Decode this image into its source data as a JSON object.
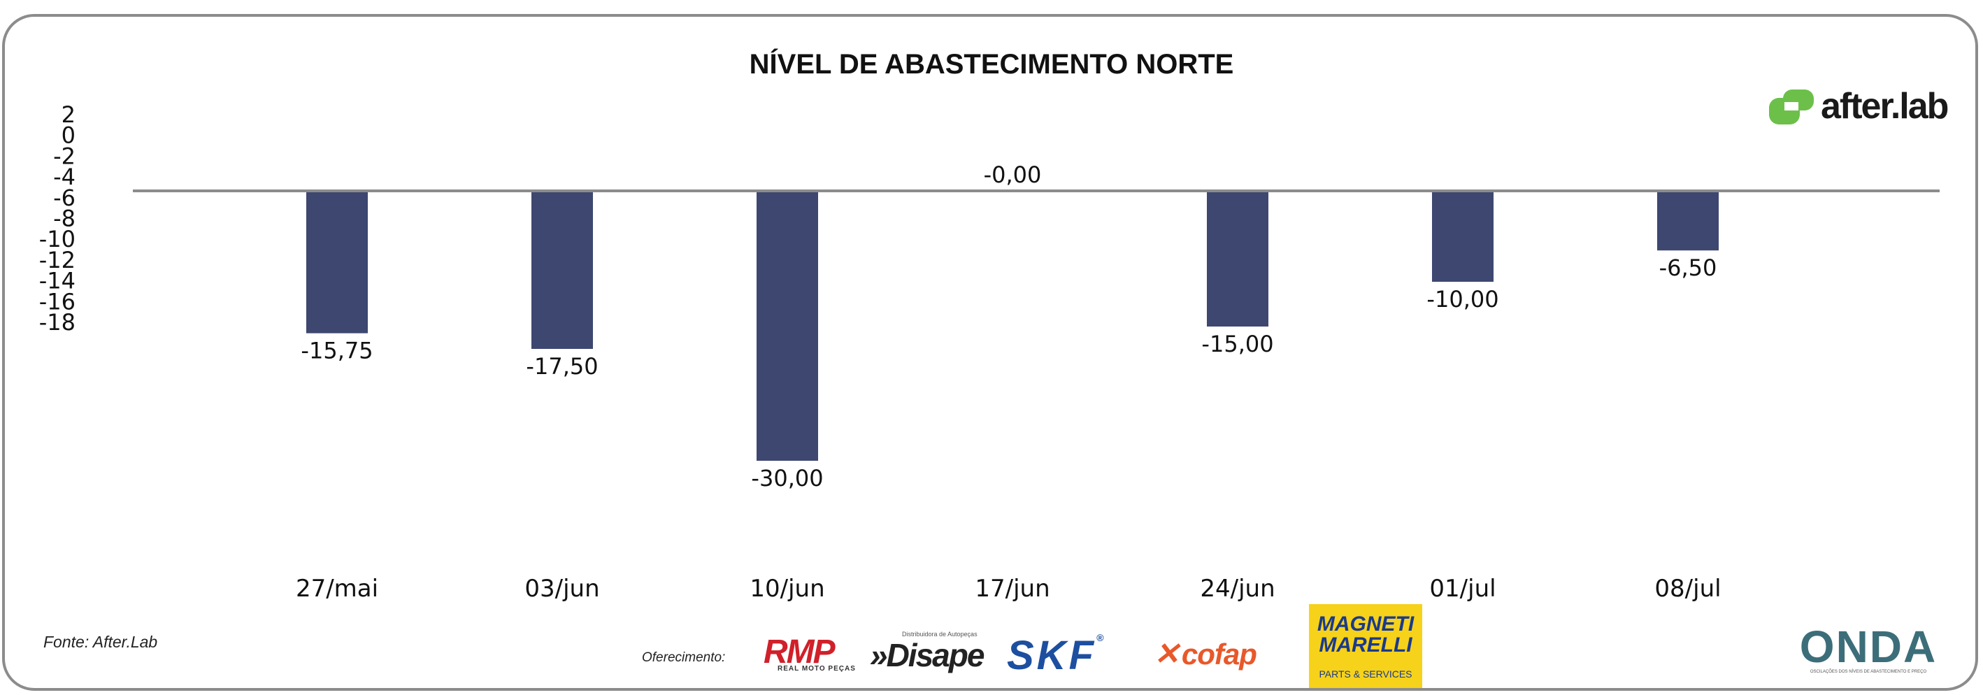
{
  "chart_data": {
    "type": "bar",
    "title": "NÍVEL DE ABASTECIMENTO NORTE",
    "categories": [
      "27/mai",
      "03/jun",
      "10/jun",
      "17/jun",
      "24/jun",
      "01/jul",
      "08/jul"
    ],
    "values": [
      -15.75,
      -17.5,
      -30.0,
      -0.0,
      -15.0,
      -10.0,
      -6.5
    ],
    "value_labels": [
      "-15,75",
      "-17,50",
      "-30,00",
      "-0,00",
      "-15,00",
      "-10,00",
      "-6,50"
    ],
    "yticks": [
      "2",
      "0",
      "-2",
      "-4",
      "-6",
      "-8",
      "-10",
      "-12",
      "-14",
      "-16",
      "-18"
    ],
    "ylim": [
      -18,
      2
    ],
    "xlabel": "",
    "ylabel": "",
    "grid": false,
    "legend": "none",
    "bar_color": "#3d4770",
    "baseline_color": "#8c8c8c"
  },
  "footer": {
    "source": "Fonte: After.Lab",
    "offer_label": "Oferecimento:"
  },
  "brand": {
    "name": "after.lab",
    "color": "#6cc04a"
  },
  "sponsors": {
    "rmp": "RMP",
    "rmp_sub": "REAL MOTO PEÇAS",
    "disape": "»Disape",
    "disape_sub": "Distribuidora de Autopeças",
    "skf": "SKF",
    "cofap": "cofap",
    "magneti": "MAGNETI MARELLI",
    "magneti_sub": "PARTS & SERVICES",
    "onda": "ONDA",
    "onda_sub": "OSCILAÇÕES DOS NÍVEIS DE ABASTECIMENTO E PREÇO"
  }
}
